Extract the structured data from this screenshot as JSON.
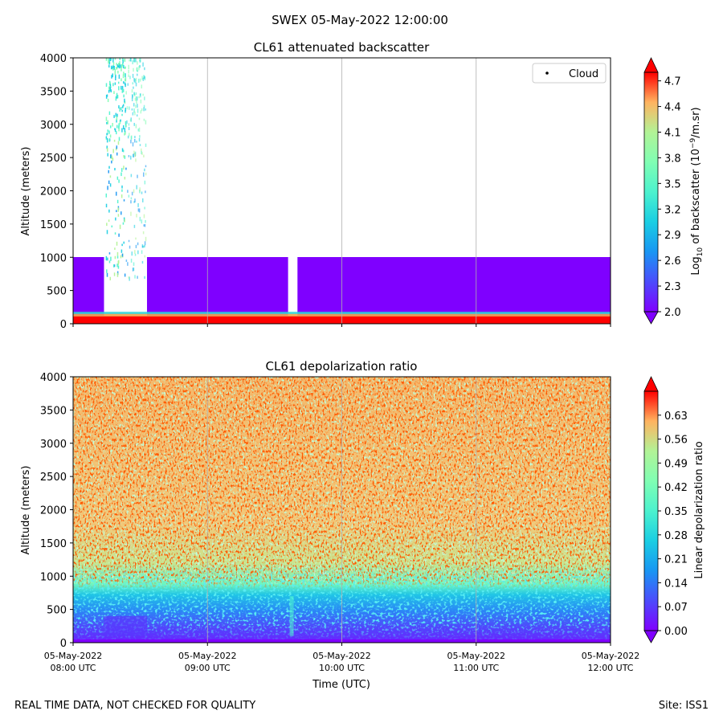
{
  "suptitle": "SWEX 05-May-2022 12:00:00",
  "footer": {
    "left": "REAL TIME DATA, NOT CHECKED FOR QUALITY",
    "right": "Site: ISS1"
  },
  "x_axis": {
    "label": "Time (UTC)",
    "ticks": [
      {
        "date": "05-May-2022",
        "time": "08:00 UTC",
        "hours": 8
      },
      {
        "date": "05-May-2022",
        "time": "09:00 UTC",
        "hours": 9
      },
      {
        "date": "05-May-2022",
        "time": "10:00 UTC",
        "hours": 10
      },
      {
        "date": "05-May-2022",
        "time": "11:00 UTC",
        "hours": 11
      },
      {
        "date": "05-May-2022",
        "time": "12:00 UTC",
        "hours": 12
      }
    ]
  },
  "chart_data": [
    {
      "type": "heatmap",
      "title": "CL61 attenuated backscatter",
      "xlabel": "",
      "ylabel": "Altitude (meters)",
      "xlim_hours_utc": [
        8,
        12
      ],
      "ylim": [
        0,
        4000
      ],
      "yticks": [
        "0",
        "500",
        "1000",
        "1500",
        "2000",
        "2500",
        "3000",
        "3500",
        "4000"
      ],
      "colorbar": {
        "label_prefix": "Log",
        "label_sub": "10",
        "label_mid": " of backscatter (10",
        "label_sup": "−9",
        "label_suffix": "/m.sr)",
        "range": [
          2.0,
          4.8
        ],
        "ticks": [
          "2.0",
          "2.3",
          "2.6",
          "2.9",
          "3.2",
          "3.5",
          "3.8",
          "4.1",
          "4.4",
          "4.7"
        ],
        "colormap": "rainbow"
      },
      "legend": {
        "entries": [
          "Cloud"
        ],
        "position": "top-right"
      },
      "features": {
        "surface_layer_top_m": 100,
        "dense_layer_top_m": 1000,
        "data_gaps_hours_utc": [
          [
            8.23,
            8.55
          ],
          [
            9.6,
            9.67
          ]
        ]
      }
    },
    {
      "type": "heatmap",
      "title": "CL61 depolarization ratio",
      "xlabel": "Time (UTC)",
      "ylabel": "Altitude (meters)",
      "xlim_hours_utc": [
        8,
        12
      ],
      "ylim": [
        0,
        4000
      ],
      "yticks": [
        "0",
        "500",
        "1000",
        "1500",
        "2000",
        "2500",
        "3000",
        "3500",
        "4000"
      ],
      "colorbar": {
        "label": "Linear depolarization ratio",
        "range": [
          0.0,
          0.7
        ],
        "ticks": [
          "0.00",
          "0.07",
          "0.14",
          "0.21",
          "0.28",
          "0.35",
          "0.42",
          "0.49",
          "0.56",
          "0.63"
        ],
        "colormap": "rainbow"
      },
      "features": {
        "low_depol_layer_top_m": 900
      }
    }
  ]
}
